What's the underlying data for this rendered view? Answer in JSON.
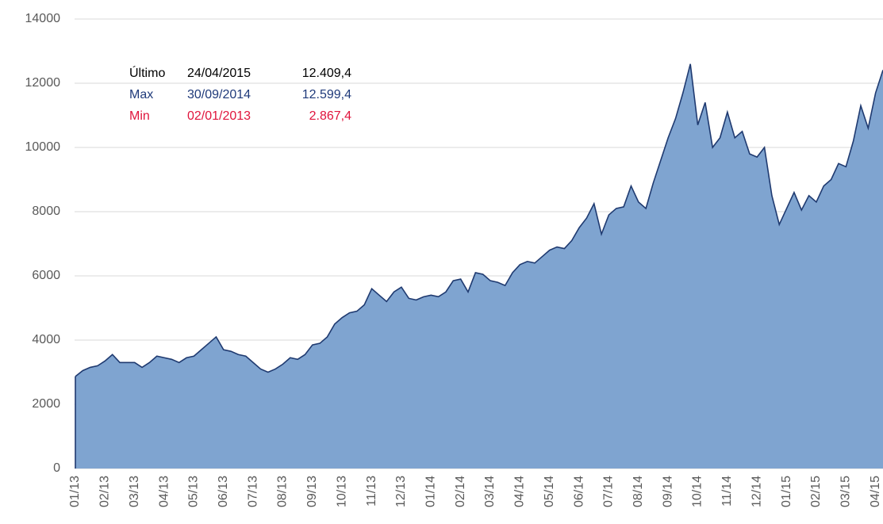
{
  "chart_data": {
    "type": "area",
    "color": "#7fa4d0",
    "line_color": "#1f3a70",
    "grid": true,
    "ylim": [
      0,
      14000
    ],
    "yticks": [
      0,
      2000,
      4000,
      6000,
      8000,
      10000,
      12000,
      14000
    ],
    "annotations": [
      {
        "label": "Último",
        "date": "24/04/2015",
        "value": "12.409,4",
        "color": "#000000"
      },
      {
        "label": "Max",
        "date": "30/09/2014",
        "value": "12.599,4",
        "color": "#1f3a7a"
      },
      {
        "label": "Min",
        "date": "02/01/2013",
        "value": "2.867,4",
        "color": "#e0143c"
      }
    ],
    "categories": [
      "01/13",
      null,
      null,
      null,
      "02/13",
      null,
      null,
      null,
      "03/13",
      null,
      null,
      null,
      "04/13",
      null,
      null,
      null,
      "05/13",
      null,
      null,
      null,
      "06/13",
      null,
      null,
      null,
      "07/13",
      null,
      null,
      null,
      "08/13",
      null,
      null,
      null,
      "09/13",
      null,
      null,
      null,
      "10/13",
      null,
      null,
      null,
      "11/13",
      null,
      null,
      null,
      "12/13",
      null,
      null,
      null,
      "01/14",
      null,
      null,
      null,
      "02/14",
      null,
      null,
      null,
      "03/14",
      null,
      null,
      null,
      "04/14",
      null,
      null,
      null,
      "05/14",
      null,
      null,
      null,
      "06/14",
      null,
      null,
      null,
      "07/14",
      null,
      null,
      null,
      "08/14",
      null,
      null,
      null,
      "09/14",
      null,
      null,
      null,
      "10/14",
      null,
      null,
      null,
      "11/14",
      null,
      null,
      null,
      "12/14",
      null,
      null,
      null,
      "01/15",
      null,
      null,
      null,
      "02/15",
      null,
      null,
      null,
      "03/15",
      null,
      null,
      null,
      "04/15",
      null
    ],
    "values": [
      2867.4,
      3050,
      3150,
      3200,
      3350,
      3550,
      3300,
      3300,
      3300,
      3150,
      3300,
      3500,
      3450,
      3400,
      3300,
      3450,
      3500,
      3700,
      3900,
      4100,
      3700,
      3650,
      3550,
      3500,
      3300,
      3100,
      3000,
      3100,
      3250,
      3450,
      3400,
      3550,
      3850,
      3900,
      4100,
      4500,
      4700,
      4850,
      4900,
      5100,
      5600,
      5400,
      5200,
      5500,
      5650,
      5300,
      5250,
      5350,
      5400,
      5350,
      5500,
      5850,
      5900,
      5500,
      6100,
      6050,
      5850,
      5800,
      5700,
      6100,
      6350,
      6450,
      6400,
      6600,
      6800,
      6900,
      6850,
      7100,
      7500,
      7800,
      8250,
      7300,
      7900,
      8100,
      8150,
      8800,
      8300,
      8100,
      8900,
      9600,
      10300,
      10900,
      11700,
      12599.4,
      10700,
      11400,
      10000,
      10300,
      11100,
      10300,
      10500,
      9800,
      9700,
      10000,
      8500,
      7600,
      8100,
      8600,
      8050,
      8500,
      8300,
      8800,
      9000,
      9500,
      9400,
      10200,
      11300,
      10600,
      11700,
      12409.4
    ]
  }
}
